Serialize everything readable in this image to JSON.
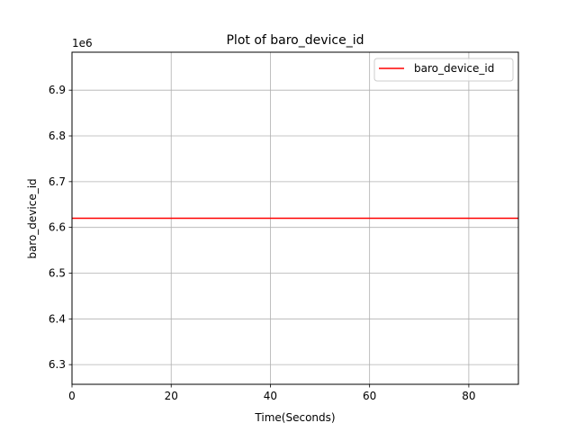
{
  "chart_data": {
    "type": "line",
    "title": "Plot of baro_device_id",
    "xlabel": "Time(Seconds)",
    "ylabel": "baro_device_id",
    "y_offset_text": "1e6",
    "xlim": [
      0,
      90
    ],
    "ylim": [
      6.257,
      6.983
    ],
    "y_scale_factor": 1000000,
    "x_ticks": [
      0,
      20,
      40,
      60,
      80
    ],
    "y_ticks": [
      6.3,
      6.4,
      6.5,
      6.6,
      6.7,
      6.8,
      6.9
    ],
    "grid": true,
    "legend_position": "top-right",
    "series": [
      {
        "name": "baro_device_id",
        "color": "#ff0000",
        "x": [
          0,
          90
        ],
        "y": [
          6.62,
          6.62
        ]
      }
    ]
  }
}
